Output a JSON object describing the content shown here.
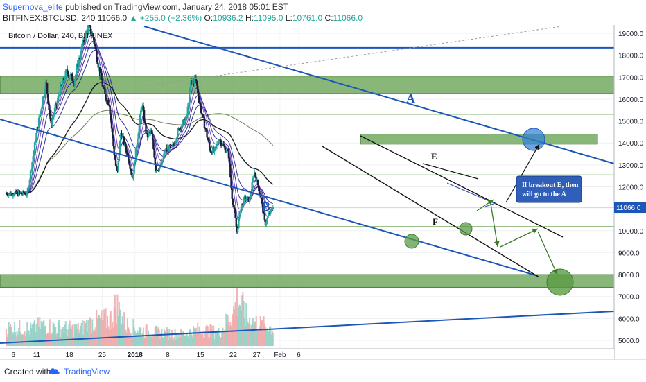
{
  "header": {
    "author": "Supernova_elite",
    "published_text": "published on TradingView.com, January 24, 2018 05:01 EST",
    "symbol": "BITFINEX:BTCUSD, 240",
    "last": "11066.0",
    "change": "+255.0 (+2.36%)",
    "open_label": "O:",
    "open": "10936.2",
    "high_label": "H:",
    "high": "11095.0",
    "low_label": "L:",
    "low": "10761.0",
    "close_label": "C:",
    "close": "11066.0"
  },
  "chart_data": {
    "type": "candlestick",
    "title": "Bitcoin / Dollar, 240, BITFINEX",
    "x_ticks": [
      "6",
      "11",
      "18",
      "25",
      "2018",
      "8",
      "15",
      "22",
      "27",
      "Feb",
      "6"
    ],
    "y_ticks": [
      19000,
      18000,
      17000,
      16000,
      15000,
      14000,
      13000,
      12000,
      11000,
      10000,
      9000,
      8000,
      7000,
      6000,
      5000
    ],
    "ylim": [
      4600,
      19700
    ],
    "last_price": 11066.0,
    "last_price_label": "11066.0",
    "price_path": [
      {
        "d": 3,
        "p": 11700
      },
      {
        "d": 5,
        "p": 14500
      },
      {
        "d": 7,
        "p": 16800
      },
      {
        "d": 8,
        "p": 14800
      },
      {
        "d": 10,
        "p": 16400
      },
      {
        "d": 11.5,
        "p": 17300
      },
      {
        "d": 13,
        "p": 16800
      },
      {
        "d": 14.5,
        "p": 18200
      },
      {
        "d": 16,
        "p": 19300
      },
      {
        "d": 17,
        "p": 18900
      },
      {
        "d": 18.5,
        "p": 17200
      },
      {
        "d": 19.5,
        "p": 16200
      },
      {
        "d": 20.5,
        "p": 15800
      },
      {
        "d": 21.5,
        "p": 13600
      },
      {
        "d": 22.2,
        "p": 12500
      },
      {
        "d": 23,
        "p": 14500
      },
      {
        "d": 24.5,
        "p": 13400
      },
      {
        "d": 25.5,
        "p": 12400
      },
      {
        "d": 26.5,
        "p": 14200
      },
      {
        "d": 27.5,
        "p": 15800
      },
      {
        "d": 28.5,
        "p": 14300
      },
      {
        "d": 29.5,
        "p": 14500
      },
      {
        "d": 30.5,
        "p": 12800
      },
      {
        "d": 31.5,
        "p": 12900
      },
      {
        "d": 32.5,
        "p": 13700
      },
      {
        "d": 34,
        "p": 13800
      },
      {
        "d": 35.5,
        "p": 14700
      },
      {
        "d": 37,
        "p": 15100
      },
      {
        "d": 38,
        "p": 16800
      },
      {
        "d": 39,
        "p": 16900
      },
      {
        "d": 40,
        "p": 15600
      },
      {
        "d": 41,
        "p": 14700
      },
      {
        "d": 42,
        "p": 13700
      },
      {
        "d": 43,
        "p": 13600
      },
      {
        "d": 44,
        "p": 14200
      },
      {
        "d": 45,
        "p": 13800
      },
      {
        "d": 46,
        "p": 13500
      },
      {
        "d": 46.7,
        "p": 11600
      },
      {
        "d": 47.3,
        "p": 10800
      },
      {
        "d": 47.8,
        "p": 9900
      },
      {
        "d": 48.5,
        "p": 11000
      },
      {
        "d": 49.5,
        "p": 11500
      },
      {
        "d": 50.5,
        "p": 11400
      },
      {
        "d": 51.5,
        "p": 12700
      },
      {
        "d": 52.5,
        "p": 11900
      },
      {
        "d": 53,
        "p": 11400
      },
      {
        "d": 53.8,
        "p": 10300
      },
      {
        "d": 54.5,
        "p": 10700
      },
      {
        "d": 55.5,
        "p": 11066
      }
    ],
    "volume_path": [
      {
        "d": 3,
        "v": 0.25
      },
      {
        "d": 6,
        "v": 0.35
      },
      {
        "d": 10,
        "v": 0.3
      },
      {
        "d": 14,
        "v": 0.28
      },
      {
        "d": 17,
        "v": 0.4
      },
      {
        "d": 21,
        "v": 0.45
      },
      {
        "d": 22,
        "v": 0.7
      },
      {
        "d": 24,
        "v": 0.35
      },
      {
        "d": 28,
        "v": 0.25
      },
      {
        "d": 32,
        "v": 0.22
      },
      {
        "d": 36,
        "v": 0.2
      },
      {
        "d": 40,
        "v": 0.28
      },
      {
        "d": 44,
        "v": 0.22
      },
      {
        "d": 47,
        "v": 0.55
      },
      {
        "d": 48,
        "v": 0.8
      },
      {
        "d": 50,
        "v": 0.45
      },
      {
        "d": 53,
        "v": 0.35
      },
      {
        "d": 55.5,
        "v": 0.3
      }
    ],
    "annotations": [
      {
        "name": "label-A",
        "text": "A"
      },
      {
        "name": "label-B",
        "text": "B"
      },
      {
        "name": "label-E",
        "text": "E"
      },
      {
        "name": "label-F",
        "text": "F"
      },
      {
        "name": "callout",
        "text": [
          "If breakout E, then",
          "will go to the A"
        ]
      }
    ],
    "colors": {
      "up": "#26a69a",
      "down": "#1b1f3a",
      "trend": "#1c56b8",
      "zone": "#5a9b45",
      "ma_dark": "#1b1b8f",
      "ma_purple": "#7a30a8",
      "ema_black": "#000000",
      "ma_olive": "#6b6b4a",
      "target": "#2f7fd6"
    }
  },
  "footer": {
    "created_with": "Created with",
    "brand": "TradingView"
  }
}
